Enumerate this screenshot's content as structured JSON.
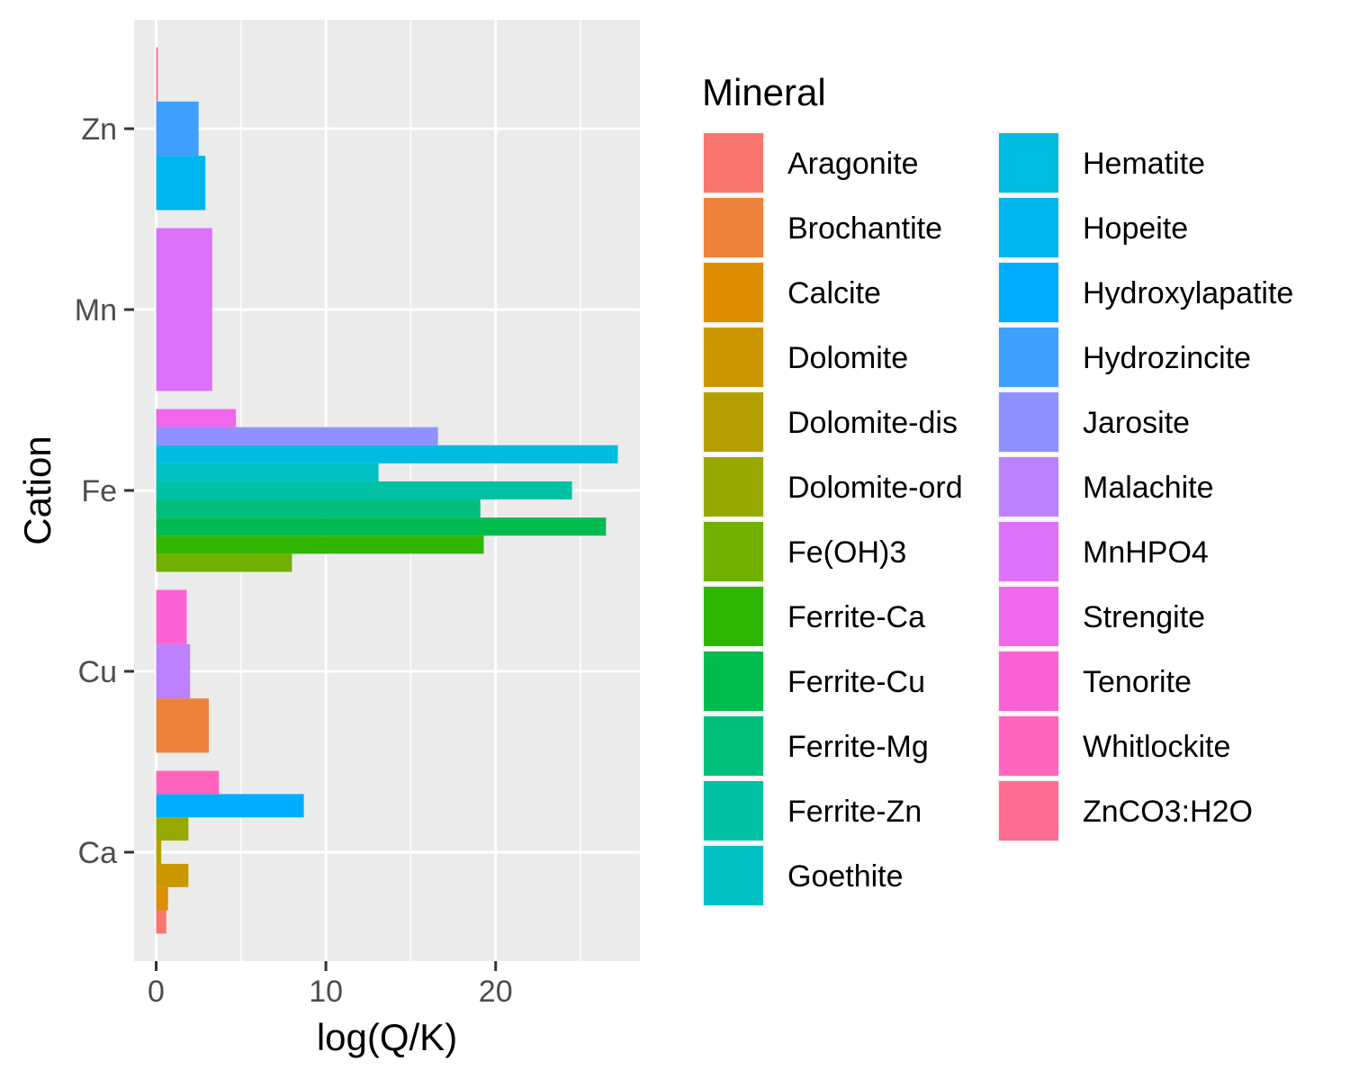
{
  "chart_data": {
    "type": "bar",
    "orientation": "horizontal",
    "xlabel": "log(Q/K)",
    "ylabel": "Cation",
    "xlim": [
      -1.3,
      28.5
    ],
    "xticks": [
      0,
      10,
      20
    ],
    "grid": true,
    "legend_title": "Mineral",
    "legend_position": "right",
    "categories": [
      "Zn",
      "Mn",
      "Fe",
      "Cu",
      "Ca"
    ],
    "minerals": [
      {
        "name": "Aragonite",
        "color": "#F8766D"
      },
      {
        "name": "Brochantite",
        "color": "#EC823C"
      },
      {
        "name": "Calcite",
        "color": "#DD8D00"
      },
      {
        "name": "Dolomite",
        "color": "#CA9700"
      },
      {
        "name": "Dolomite-dis",
        "color": "#B3A000"
      },
      {
        "name": "Dolomite-ord",
        "color": "#97A900"
      },
      {
        "name": "Fe(OH)3",
        "color": "#71B000"
      },
      {
        "name": "Ferrite-Ca",
        "color": "#2FB600"
      },
      {
        "name": "Ferrite-Cu",
        "color": "#00BB4E"
      },
      {
        "name": "Ferrite-Mg",
        "color": "#00BF7D"
      },
      {
        "name": "Ferrite-Zn",
        "color": "#00C1A3"
      },
      {
        "name": "Goethite",
        "color": "#00C0C4"
      },
      {
        "name": "Hematite",
        "color": "#00BCE0"
      },
      {
        "name": "Hopeite",
        "color": "#00B5EE"
      },
      {
        "name": "Hydroxylapatite",
        "color": "#00ACFC"
      },
      {
        "name": "Hydrozincite",
        "color": "#3F9FFF"
      },
      {
        "name": "Jarosite",
        "color": "#8F91FF"
      },
      {
        "name": "Malachite",
        "color": "#BD81FF"
      },
      {
        "name": "MnHPO4",
        "color": "#DC71FA"
      },
      {
        "name": "Strengite",
        "color": "#EF67EB"
      },
      {
        "name": "Tenorite",
        "color": "#FA62D4"
      },
      {
        "name": "Whitlockite",
        "color": "#FF65BC"
      },
      {
        "name": "ZnCO3:H2O",
        "color": "#FF6C91"
      }
    ],
    "groups": [
      {
        "cation": "Zn",
        "bars": [
          {
            "mineral": "Hopeite",
            "value": 2.9
          },
          {
            "mineral": "Hydrozincite",
            "value": 2.5
          },
          {
            "mineral": "ZnCO3:H2O",
            "value": 0.1
          }
        ]
      },
      {
        "cation": "Mn",
        "bars": [
          {
            "mineral": "MnHPO4",
            "value": 3.3
          }
        ]
      },
      {
        "cation": "Fe",
        "bars": [
          {
            "mineral": "Fe(OH)3",
            "value": 8.0
          },
          {
            "mineral": "Ferrite-Ca",
            "value": 19.3
          },
          {
            "mineral": "Ferrite-Cu",
            "value": 26.5
          },
          {
            "mineral": "Ferrite-Mg",
            "value": 19.1
          },
          {
            "mineral": "Ferrite-Zn",
            "value": 24.5
          },
          {
            "mineral": "Goethite",
            "value": 13.1
          },
          {
            "mineral": "Hematite",
            "value": 27.2
          },
          {
            "mineral": "Jarosite",
            "value": 16.6
          },
          {
            "mineral": "Strengite",
            "value": 4.7
          }
        ]
      },
      {
        "cation": "Cu",
        "bars": [
          {
            "mineral": "Brochantite",
            "value": 3.1
          },
          {
            "mineral": "Malachite",
            "value": 2.0
          },
          {
            "mineral": "Tenorite",
            "value": 1.8
          }
        ]
      },
      {
        "cation": "Ca",
        "bars": [
          {
            "mineral": "Aragonite",
            "value": 0.6
          },
          {
            "mineral": "Calcite",
            "value": 0.7
          },
          {
            "mineral": "Dolomite",
            "value": 1.9
          },
          {
            "mineral": "Dolomite-dis",
            "value": 0.3
          },
          {
            "mineral": "Dolomite-ord",
            "value": 1.9
          },
          {
            "mineral": "Hydroxylapatite",
            "value": 8.7
          },
          {
            "mineral": "Whitlockite",
            "value": 3.7
          }
        ]
      }
    ]
  }
}
